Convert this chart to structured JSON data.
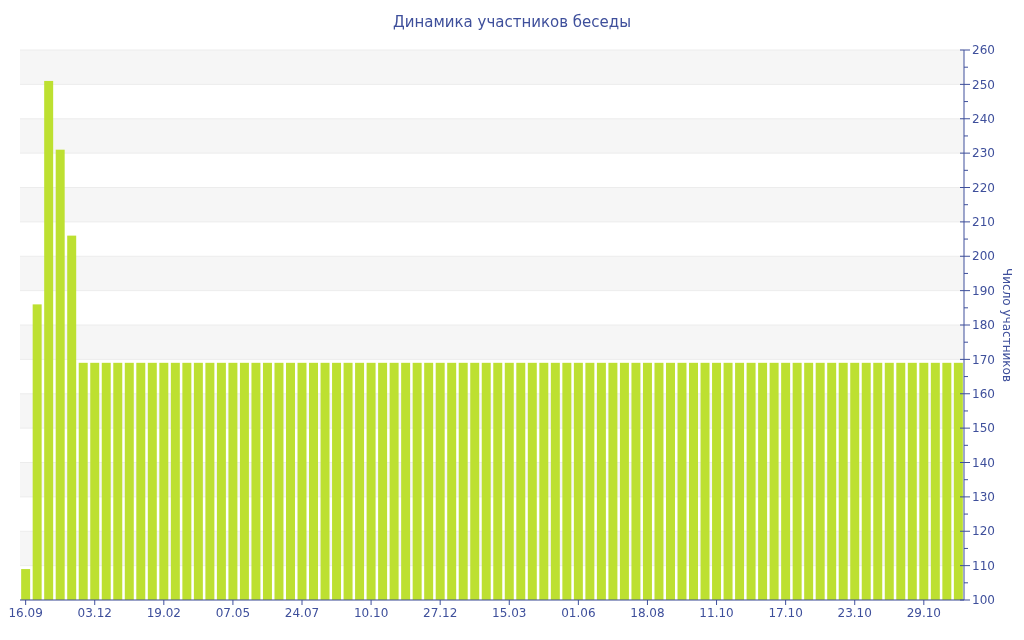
{
  "chart_data": {
    "type": "bar",
    "title": "Динамика участников беседы",
    "ylabel": "Число участников",
    "categories": [
      "16.09",
      null,
      null,
      null,
      null,
      null,
      "03.12",
      null,
      null,
      null,
      null,
      null,
      "19.02",
      null,
      null,
      null,
      null,
      null,
      "07.05",
      null,
      null,
      null,
      null,
      null,
      "24.07",
      null,
      null,
      null,
      null,
      null,
      "10.10",
      null,
      null,
      null,
      null,
      null,
      "27.12",
      null,
      null,
      null,
      null,
      null,
      "15.03",
      null,
      null,
      null,
      null,
      null,
      "01.06",
      null,
      null,
      null,
      null,
      null,
      "18.08",
      null,
      null,
      null,
      null,
      null,
      "11.10",
      null,
      null,
      null,
      null,
      null,
      "17.10",
      null,
      null,
      null,
      null,
      null,
      "23.10",
      null,
      null,
      null,
      null,
      null,
      "29.10",
      null,
      null,
      null
    ],
    "values": [
      109,
      186,
      251,
      231,
      206,
      169,
      169,
      169,
      169,
      169,
      169,
      169,
      169,
      169,
      169,
      169,
      169,
      169,
      169,
      169,
      169,
      169,
      169,
      169,
      169,
      169,
      169,
      169,
      169,
      169,
      169,
      169,
      169,
      169,
      169,
      169,
      169,
      169,
      169,
      169,
      169,
      169,
      169,
      169,
      169,
      169,
      169,
      169,
      169,
      169,
      169,
      169,
      169,
      169,
      169,
      169,
      169,
      169,
      169,
      169,
      169,
      169,
      169,
      169,
      169,
      169,
      169,
      169,
      169,
      169,
      169,
      169,
      169,
      169,
      169,
      169,
      169,
      169,
      169,
      169,
      169,
      169
    ],
    "color": "#bde031",
    "ylim": [
      100,
      260
    ],
    "yticks": [
      100,
      {
        "value": 105,
        "label": null
      },
      110,
      {
        "value": 115,
        "label": null
      },
      120,
      {
        "value": 125,
        "label": null
      },
      130,
      {
        "value": 135,
        "label": null
      },
      140,
      {
        "value": 145,
        "label": null
      },
      150,
      {
        "value": 155,
        "label": null
      },
      160,
      {
        "value": 165,
        "label": null
      },
      170,
      {
        "value": 175,
        "label": null
      },
      180,
      {
        "value": 185,
        "label": null
      },
      190,
      {
        "value": 195,
        "label": null
      },
      200,
      {
        "value": 205,
        "label": null
      },
      210,
      {
        "value": 215,
        "label": null
      },
      220,
      {
        "value": 225,
        "label": null
      },
      230,
      {
        "value": 235,
        "label": null
      },
      240,
      {
        "value": 245,
        "label": null
      },
      250,
      {
        "value": 255,
        "label": null
      },
      260
    ],
    "grid": "y"
  }
}
